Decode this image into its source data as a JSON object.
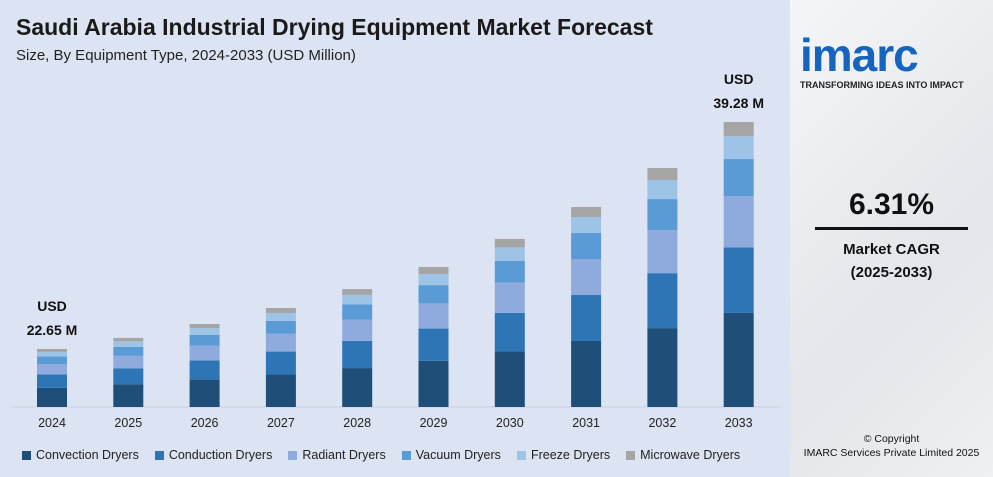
{
  "header": {
    "title": "Saudi Arabia Industrial Drying Equipment Market Forecast",
    "subtitle": "Size, By Equipment Type, 2024-2033 (USD Million)"
  },
  "brand": {
    "logo": "imarc",
    "tagline": "TRANSFORMING IDEAS INTO IMPACT",
    "copyright": "© Copyright",
    "company": "IMARC Services Private Limited 2025"
  },
  "kpi": {
    "value": "6.31%",
    "label1": "Market CAGR",
    "label2": "(2025-2033)"
  },
  "chart_data": {
    "type": "bar",
    "stacked": true,
    "categories": [
      "2024",
      "2025",
      "2026",
      "2027",
      "2028",
      "2029",
      "2030",
      "2031",
      "2032",
      "2033"
    ],
    "totals": [
      22.65,
      23.46,
      24.48,
      25.65,
      27.04,
      28.66,
      30.71,
      33.05,
      35.91,
      39.28
    ],
    "annotations": [
      {
        "category": "2024",
        "line1": "USD",
        "line2": "22.65 M"
      },
      {
        "category": "2033",
        "line1": "USD",
        "line2": "39.28 M"
      }
    ],
    "series": [
      {
        "name": "Convection Dryers",
        "color": "#1f4e79",
        "share": 0.33
      },
      {
        "name": "Conduction Dryers",
        "color": "#2e75b6",
        "share": 0.23
      },
      {
        "name": "Radiant Dryers",
        "color": "#8faadc",
        "share": 0.18
      },
      {
        "name": "Vacuum Dryers",
        "color": "#5b9bd5",
        "share": 0.13
      },
      {
        "name": "Freeze Dryers",
        "color": "#9dc3e6",
        "share": 0.08
      },
      {
        "name": "Microwave Dryers",
        "color": "#a5a5a5",
        "share": 0.05
      }
    ],
    "ylim": [
      18.4,
      40
    ],
    "grid": false,
    "legend": "bottom"
  }
}
